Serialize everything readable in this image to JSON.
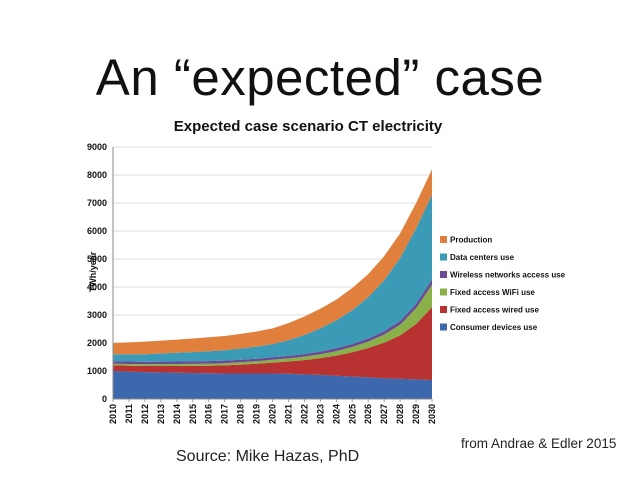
{
  "slide": {
    "title": "An “expected” case",
    "source": "Source: Mike Hazas, PhD",
    "citation": "from Andrae & Edler 2015"
  },
  "chart_data": {
    "type": "area",
    "stacked": true,
    "title": "Expected case scenario CT electricity",
    "ylabel": "TWh/year",
    "xlabel": "",
    "ylim": [
      0,
      9000
    ],
    "yticks": [
      0,
      1000,
      2000,
      3000,
      4000,
      5000,
      6000,
      7000,
      8000,
      9000
    ],
    "grid": "horizontal",
    "legend_position": "right",
    "x": [
      "2010",
      "2011",
      "2012",
      "2013",
      "2014",
      "2015",
      "2016",
      "2017",
      "2018",
      "2019",
      "2020",
      "2021",
      "2022",
      "2023",
      "2024",
      "2025",
      "2026",
      "2027",
      "2028",
      "2029",
      "2030"
    ],
    "series": [
      {
        "name": "Consumer devices use",
        "color": "#3d68ad",
        "values": [
          1000,
          980,
          960,
          950,
          940,
          930,
          920,
          910,
          910,
          910,
          910,
          900,
          880,
          860,
          830,
          800,
          770,
          740,
          720,
          700,
          680
        ]
      },
      {
        "name": "Fixed access wired use",
        "color": "#b83231",
        "values": [
          200,
          210,
          220,
          230,
          240,
          255,
          270,
          290,
          320,
          350,
          390,
          440,
          510,
          600,
          720,
          870,
          1050,
          1270,
          1550,
          1980,
          2600
        ]
      },
      {
        "name": "Fixed access WiFi use",
        "color": "#8ab04a",
        "values": [
          60,
          60,
          60,
          65,
          70,
          70,
          75,
          80,
          85,
          90,
          100,
          110,
          125,
          140,
          160,
          190,
          230,
          290,
          380,
          560,
          800
        ]
      },
      {
        "name": "Wireless networks access use",
        "color": "#6a4a94",
        "values": [
          90,
          90,
          90,
          90,
          90,
          90,
          90,
          90,
          90,
          90,
          90,
          90,
          90,
          95,
          100,
          105,
          110,
          120,
          135,
          155,
          190
        ]
      },
      {
        "name": "Data centers use",
        "color": "#3b9ab6",
        "values": [
          250,
          260,
          270,
          290,
          310,
          330,
          350,
          370,
          400,
          430,
          470,
          560,
          680,
          830,
          1000,
          1210,
          1480,
          1820,
          2250,
          2700,
          3020
        ]
      },
      {
        "name": "Production",
        "color": "#e0803c",
        "values": [
          400,
          420,
          450,
          460,
          470,
          485,
          500,
          510,
          520,
          540,
          560,
          610,
          660,
          700,
          740,
          790,
          820,
          860,
          880,
          900,
          910
        ]
      }
    ]
  }
}
